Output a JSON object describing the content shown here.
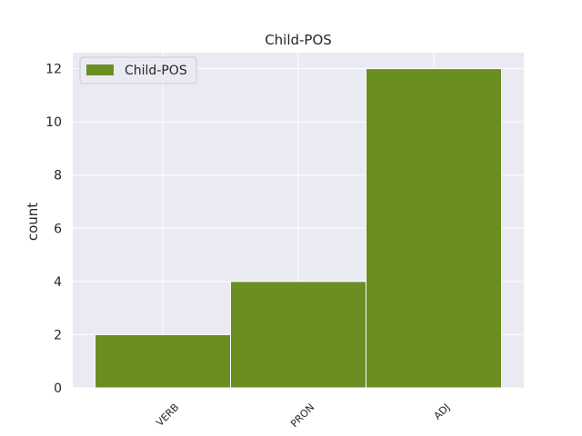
{
  "chart_data": {
    "type": "bar",
    "title": "Child-POS",
    "xlabel": "",
    "ylabel": "count",
    "categories": [
      "VERB",
      "PRON",
      "ADJ"
    ],
    "series": [
      {
        "name": "Child-POS",
        "values": [
          2,
          4,
          12
        ],
        "color": "#6b8e23"
      }
    ],
    "ylim": [
      0,
      12.6
    ],
    "yticks": [
      0,
      2,
      4,
      6,
      8,
      10,
      12
    ],
    "grid": true,
    "legend_position": "upper-left",
    "background_color": "#eaeaf2",
    "grid_color": "#ffffff",
    "x_tick_rotation": 45
  }
}
